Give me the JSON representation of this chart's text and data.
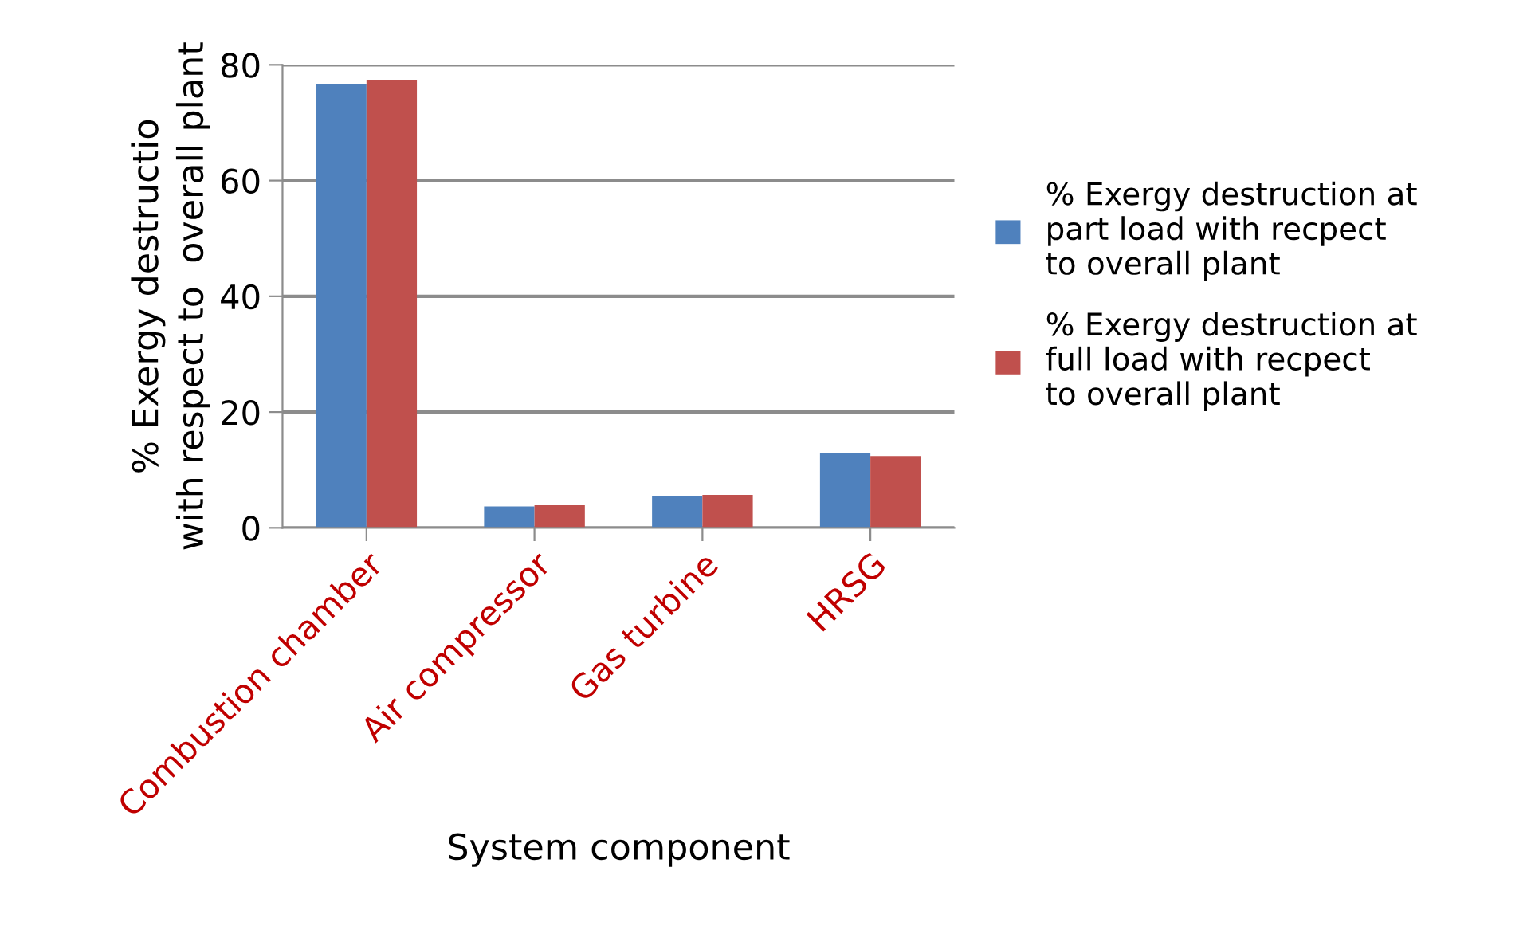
{
  "chart_data": {
    "type": "bar",
    "xlabel": "System component",
    "ylabel": "% Exergy destructio\nwith respect to  overall plant",
    "categories": [
      "Combustion chamber",
      "Air compressor",
      "Gas turbine",
      "HRSG"
    ],
    "series": [
      {
        "name": "% Exergy destruction at part load with recpect to overall plant",
        "color": "#4f81bd",
        "values": [
          76.6,
          3.7,
          5.5,
          12.9
        ]
      },
      {
        "name": "% Exergy destruction at full load with recpect to overall plant",
        "color": "#c0504d",
        "values": [
          77.4,
          3.9,
          5.7,
          12.4
        ]
      }
    ],
    "ylim": [
      0,
      80
    ],
    "yticks": [
      0,
      20,
      40,
      60,
      80
    ],
    "grid": "y",
    "legend": "right"
  }
}
